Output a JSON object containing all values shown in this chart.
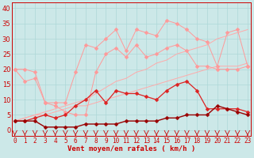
{
  "x": [
    0,
    1,
    2,
    3,
    4,
    5,
    6,
    7,
    8,
    9,
    10,
    11,
    12,
    13,
    14,
    15,
    16,
    17,
    18,
    19,
    20,
    21,
    22,
    23
  ],
  "background_color": "#cce8e8",
  "grid_color": "#add8d8",
  "xlabel": "Vent moyen/en rafales ( km/h )",
  "xlabel_color": "#cc0000",
  "xlabel_fontsize": 6.5,
  "xtick_color": "#cc0000",
  "ytick_color": "#cc0000",
  "ytick_fontsize": 6,
  "xtick_fontsize": 5.5,
  "ylim": [
    -2,
    42
  ],
  "xlim": [
    -0.3,
    23.3
  ],
  "yticks": [
    0,
    5,
    10,
    15,
    20,
    25,
    30,
    35,
    40
  ],
  "series": {
    "pink_jagged_upper": [
      20,
      20,
      19,
      9,
      9,
      9,
      19,
      28,
      27,
      30,
      33,
      26,
      33,
      32,
      31,
      36,
      35,
      33,
      30,
      29,
      21,
      32,
      33,
      21
    ],
    "pink_jagged_lower": [
      20,
      16,
      17,
      9,
      8,
      6,
      5,
      5,
      19,
      25,
      27,
      24,
      28,
      24,
      25,
      27,
      28,
      26,
      21,
      21,
      20,
      20,
      20,
      21
    ],
    "pink_trend_upper": [
      3,
      4,
      5,
      6,
      7,
      8,
      9,
      10,
      12,
      14,
      16,
      17,
      19,
      20,
      22,
      23,
      25,
      26,
      27,
      28,
      30,
      31,
      32,
      33
    ],
    "pink_trend_lower": [
      3,
      4,
      5,
      5,
      6,
      7,
      8,
      8,
      9,
      10,
      11,
      12,
      13,
      14,
      15,
      16,
      17,
      18,
      19,
      20,
      21,
      21,
      21,
      22
    ],
    "red_mid": [
      3,
      3,
      4,
      5,
      4,
      5,
      8,
      10,
      13,
      9,
      13,
      12,
      12,
      11,
      10,
      13,
      15,
      16,
      13,
      7,
      7,
      7,
      7,
      6
    ],
    "dark_red_low": [
      3,
      3,
      3,
      1,
      1,
      1,
      1,
      2,
      2,
      2,
      2,
      3,
      3,
      3,
      3,
      4,
      4,
      5,
      5,
      5,
      8,
      7,
      6,
      5
    ]
  },
  "colors": {
    "pink_jagged_upper": "#ff9999",
    "pink_jagged_lower": "#ff9999",
    "pink_trend_upper": "#ffaaaa",
    "pink_trend_lower": "#ffaaaa",
    "red_mid": "#dd2222",
    "dark_red_low": "#990000"
  },
  "marker": "D",
  "lw_thin": 0.7,
  "lw_mid": 0.9,
  "lw_thick": 1.0
}
